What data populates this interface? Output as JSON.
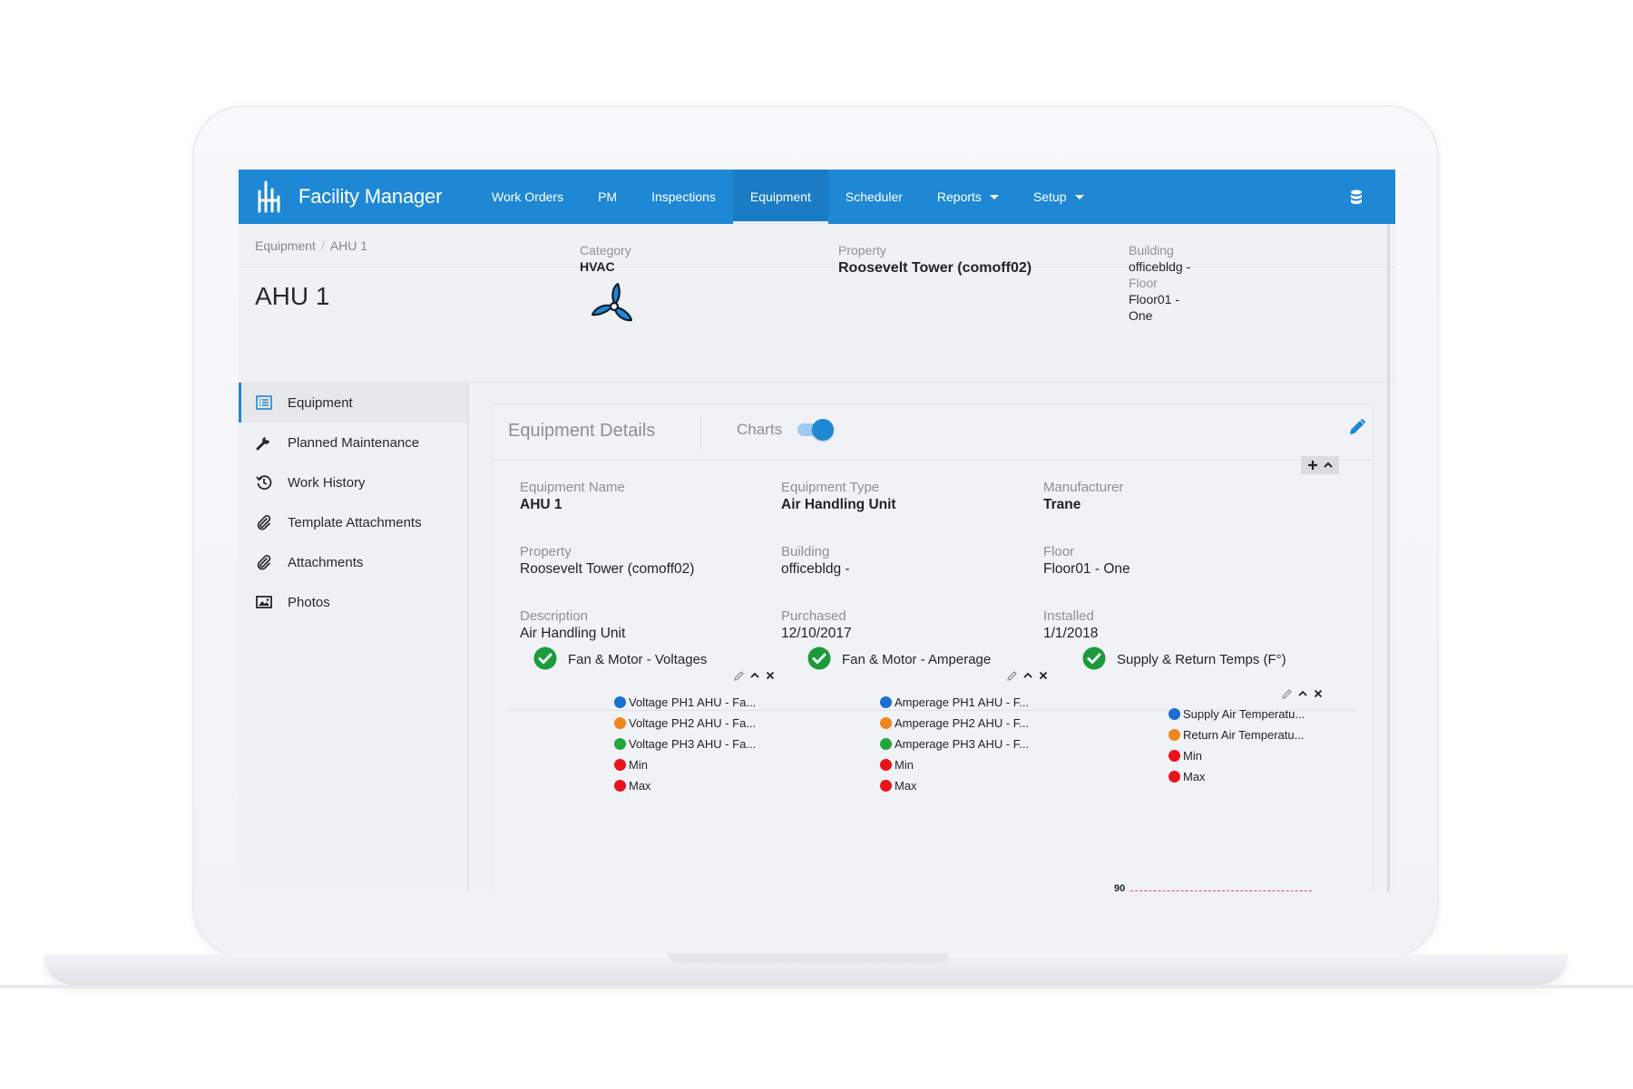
{
  "nav": {
    "brand": "Facility Manager",
    "items": [
      {
        "label": "Work Orders",
        "active": false,
        "dropdown": false
      },
      {
        "label": "PM",
        "active": false,
        "dropdown": false
      },
      {
        "label": "Inspections",
        "active": false,
        "dropdown": false
      },
      {
        "label": "Equipment",
        "active": true,
        "dropdown": false
      },
      {
        "label": "Scheduler",
        "active": false,
        "dropdown": false
      },
      {
        "label": "Reports",
        "active": false,
        "dropdown": true
      },
      {
        "label": "Setup",
        "active": false,
        "dropdown": true
      }
    ],
    "right_icon": "database-icon",
    "color": "#1e88d4"
  },
  "breadcrumb": [
    "Equipment",
    "AHU 1"
  ],
  "header": {
    "title": "AHU 1",
    "icon": "fan-icon",
    "category_label": "Category",
    "category_value": "HVAC",
    "property_label": "Property",
    "property_value": "Roosevelt Tower (comoff02)",
    "building_label": "Building",
    "building_value": "officebldg -",
    "floor_label": "Floor",
    "floor_value_line1": "Floor01 -",
    "floor_value_line2": "One"
  },
  "sidebar": {
    "items": [
      {
        "label": "Equipment",
        "icon": "list-icon",
        "active": true
      },
      {
        "label": "Planned Maintenance",
        "icon": "wrench-icon",
        "active": false
      },
      {
        "label": "Work History",
        "icon": "history-icon",
        "active": false
      },
      {
        "label": "Template Attachments",
        "icon": "paperclip-icon",
        "active": false
      },
      {
        "label": "Attachments",
        "icon": "paperclip-icon",
        "active": false
      },
      {
        "label": "Photos",
        "icon": "image-icon",
        "active": false
      }
    ]
  },
  "details": {
    "title": "Equipment Details",
    "charts_label": "Charts",
    "charts_enabled": true,
    "fields": {
      "equipment_name": {
        "label": "Equipment Name",
        "value": "AHU 1"
      },
      "equipment_type": {
        "label": "Equipment Type",
        "value": "Air Handling Unit"
      },
      "manufacturer": {
        "label": "Manufacturer",
        "value": "Trane"
      },
      "property": {
        "label": "Property",
        "value": "Roosevelt Tower (comoff02)"
      },
      "building": {
        "label": "Building",
        "value": "officebldg -"
      },
      "floor": {
        "label": "Floor",
        "value": "Floor01 - One"
      },
      "description": {
        "label": "Description",
        "value": "Air Handling Unit"
      },
      "purchased": {
        "label": "Purchased",
        "value": "12/10/2017"
      },
      "installed": {
        "label": "Installed",
        "value": "1/1/2018"
      }
    }
  },
  "widgets": [
    {
      "title": "Fan & Motor - Voltages",
      "legend": [
        {
          "label": "Voltage PH1 AHU - Fa...",
          "color": "#1c6fd1"
        },
        {
          "label": "Voltage PH2 AHU - Fa...",
          "color": "#f0851e"
        },
        {
          "label": "Voltage PH3 AHU - Fa...",
          "color": "#22a83a"
        },
        {
          "label": "Min",
          "color": "#e8141c"
        },
        {
          "label": "Max",
          "color": "#e8141c"
        }
      ]
    },
    {
      "title": "Fan & Motor - Amperage",
      "legend": [
        {
          "label": "Amperage PH1 AHU - F...",
          "color": "#1c6fd1"
        },
        {
          "label": "Amperage PH2 AHU - F...",
          "color": "#f0851e"
        },
        {
          "label": "Amperage PH3 AHU - F...",
          "color": "#22a83a"
        },
        {
          "label": "Min",
          "color": "#e8141c"
        },
        {
          "label": "Max",
          "color": "#e8141c"
        }
      ]
    },
    {
      "title": "Supply & Return Temps (F°)",
      "legend": [
        {
          "label": "Supply Air Temperatu...",
          "color": "#1c6fd1"
        },
        {
          "label": "Return Air Temperatu...",
          "color": "#f0851e"
        },
        {
          "label": "Min",
          "color": "#e8141c"
        },
        {
          "label": "Max",
          "color": "#e8141c"
        }
      ],
      "y_tick": "90"
    }
  ]
}
